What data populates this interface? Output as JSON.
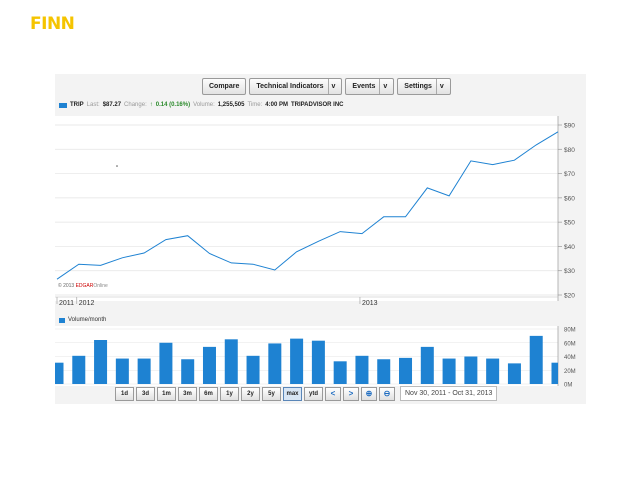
{
  "logo": "FINN",
  "toolbar": {
    "compare": "Compare",
    "technical_indicators": "Technical Indicators",
    "events": "Events",
    "settings": "Settings",
    "dropdown_glyph": "v"
  },
  "quote": {
    "symbol": "TRIP",
    "last_label": "Last:",
    "last": "$87.27",
    "change_label": "Change:",
    "change": "0.14 (0.16%)",
    "volume_label": "Volume:",
    "volume": "1,255,505",
    "time_label": "Time:",
    "time": "4:00 PM",
    "company": "TRIPADVISOR INC"
  },
  "copyright": {
    "prefix": "© 2013 ",
    "edgar": "EDGAR",
    "online": "Online"
  },
  "volume_label": "Volume/month",
  "range_buttons": [
    "1d",
    "3d",
    "1m",
    "3m",
    "6m",
    "1y",
    "2y",
    "5y",
    "max",
    "ytd"
  ],
  "active_range": "max",
  "date_range": "Nov 30, 2011 - Oct 31, 2013",
  "colors": {
    "accent": "#1e82d2",
    "logo": "#f5c400",
    "positive": "#2a8a2a"
  },
  "chart_data": [
    {
      "type": "line",
      "x": [
        "2011-11",
        "2011-12",
        "2012-01",
        "2012-02",
        "2012-03",
        "2012-04",
        "2012-05",
        "2012-06",
        "2012-07",
        "2012-08",
        "2012-09",
        "2012-10",
        "2012-11",
        "2012-12",
        "2013-01",
        "2013-02",
        "2013-03",
        "2013-04",
        "2013-05",
        "2013-06",
        "2013-07",
        "2013-08",
        "2013-09",
        "2013-10"
      ],
      "series": [
        {
          "values": [
            26.5,
            32.7,
            32.2,
            35.3,
            37.3,
            42.8,
            44.4,
            37.1,
            33.2,
            32.7,
            30.3,
            37.8,
            42.1,
            46.1,
            45.3,
            52.2,
            52.2,
            64.1,
            60.8,
            75.2,
            73.7,
            75.5,
            81.8,
            87.2
          ]
        }
      ],
      "ylim": [
        20,
        90
      ],
      "y_ticks": [
        "$20",
        "$30",
        "$40",
        "$50",
        "$60",
        "$70",
        "$80",
        "$90"
      ],
      "x_tick_labels": [
        "2011",
        "2012",
        "2013"
      ],
      "grid": true
    },
    {
      "type": "bar",
      "categories": [
        "2011-11",
        "2011-12",
        "2012-01",
        "2012-02",
        "2012-03",
        "2012-04",
        "2012-05",
        "2012-06",
        "2012-07",
        "2012-08",
        "2012-09",
        "2012-10",
        "2012-11",
        "2012-12",
        "2013-01",
        "2013-02",
        "2013-03",
        "2013-04",
        "2013-05",
        "2013-06",
        "2013-07",
        "2013-08",
        "2013-09",
        "2013-10"
      ],
      "values": [
        31,
        41,
        64,
        37,
        37,
        60,
        36,
        54,
        65,
        41,
        59,
        66,
        63,
        33,
        41,
        36,
        38,
        54,
        37,
        40,
        37,
        30,
        70,
        31
      ],
      "unit": "M",
      "ylim": [
        0,
        80
      ],
      "y_ticks": [
        "0M",
        "20M",
        "40M",
        "60M",
        "80M"
      ]
    }
  ]
}
